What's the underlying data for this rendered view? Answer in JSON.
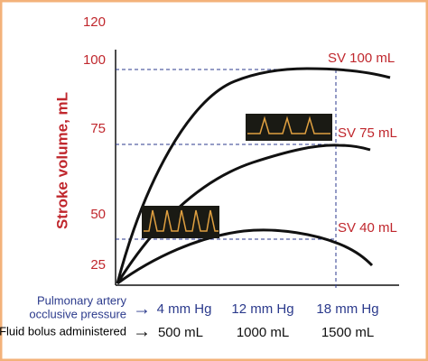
{
  "y_axis": {
    "title": "Stroke volume, mL",
    "tick_labels": [
      "120",
      "100",
      "75",
      "50",
      "25"
    ]
  },
  "curve_labels": [
    "SV 100 mL",
    "SV 75 mL",
    "SV 40 mL"
  ],
  "rows": [
    {
      "label_lines": [
        "Pulmonary artery",
        "occlusive pressure"
      ],
      "arrow": "→",
      "values": [
        "4 mm Hg",
        "12 mm Hg",
        "18 mm Hg"
      ]
    },
    {
      "label_lines": [
        "Fluid bolus administered"
      ],
      "arrow": "→",
      "values": [
        "500 mL",
        "1000 mL",
        "1500 mL"
      ]
    }
  ]
}
